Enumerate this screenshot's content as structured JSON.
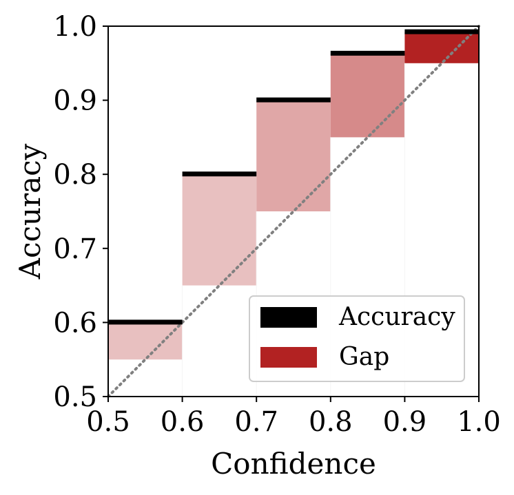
{
  "chart_data": {
    "type": "bar",
    "title": "",
    "xlabel": "Confidence",
    "ylabel": "Accuracy",
    "xlim": [
      0.5,
      1.0
    ],
    "ylim": [
      0.5,
      1.0
    ],
    "grid": false,
    "legend_position": "bottom-right",
    "x_ticks": [
      "0.5",
      "0.6",
      "0.7",
      "0.8",
      "0.9",
      "1.0"
    ],
    "y_ticks": [
      "0.5",
      "0.6",
      "0.7",
      "0.8",
      "0.9",
      "1.0"
    ],
    "bins": [
      {
        "bin_start": 0.5,
        "bin_end": 0.6,
        "confidence": 0.55,
        "accuracy": 0.6,
        "gap_color": "#e8c0c0"
      },
      {
        "bin_start": 0.6,
        "bin_end": 0.7,
        "confidence": 0.65,
        "accuracy": 0.8,
        "gap_color": "#e8c0c0"
      },
      {
        "bin_start": 0.7,
        "bin_end": 0.8,
        "confidence": 0.75,
        "accuracy": 0.9,
        "gap_color": "#e0a7a7"
      },
      {
        "bin_start": 0.8,
        "bin_end": 0.9,
        "confidence": 0.85,
        "accuracy": 0.963,
        "gap_color": "#d68a8a"
      },
      {
        "bin_start": 0.9,
        "bin_end": 1.0,
        "confidence": 0.95,
        "accuracy": 0.992,
        "gap_color": "#b22222"
      }
    ],
    "diagonal": {
      "from": [
        0.5,
        0.5
      ],
      "to": [
        1.0,
        1.0
      ],
      "color": "#808080",
      "style": "dotted"
    },
    "legend": [
      {
        "label": "Accuracy",
        "color": "#000000"
      },
      {
        "label": "Gap",
        "color": "#b22222"
      }
    ]
  }
}
